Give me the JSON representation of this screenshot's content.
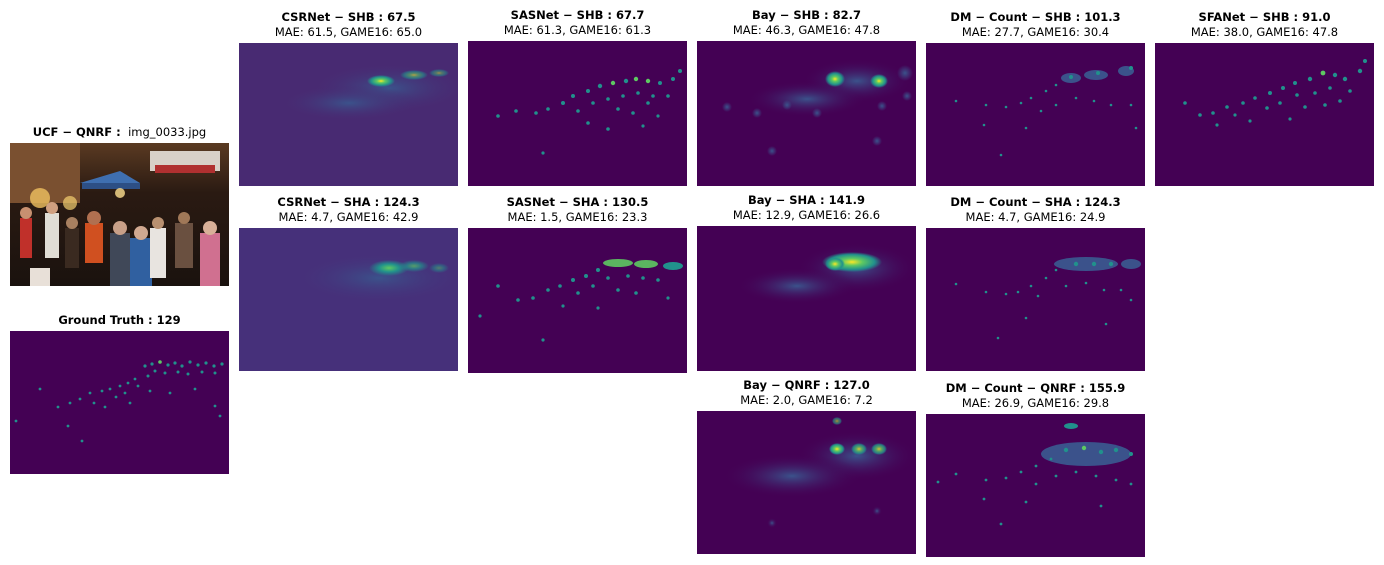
{
  "input": {
    "dataset_label": "UCF − QNRF :",
    "filename": "img_0033.jpg",
    "image_name": "crowd-photo"
  },
  "ground_truth": {
    "label": "Ground Truth : 129"
  },
  "panels": {
    "csrnet_shb": {
      "title": "CSRNet − SHB : 67.5",
      "metrics": "MAE: 61.5, GAME16: 65.0"
    },
    "csrnet_sha": {
      "title": "CSRNet − SHA : 124.3",
      "metrics": "MAE: 4.7, GAME16: 42.9"
    },
    "sasnet_shb": {
      "title": "SASNet − SHB : 67.7",
      "metrics": "MAE: 61.3, GAME16: 61.3"
    },
    "sasnet_sha": {
      "title": "SASNet − SHA : 130.5",
      "metrics": "MAE: 1.5, GAME16: 23.3"
    },
    "bay_shb": {
      "title": "Bay − SHB : 82.7",
      "metrics": "MAE: 46.3, GAME16: 47.8"
    },
    "bay_sha": {
      "title": "Bay − SHA : 141.9",
      "metrics": "MAE: 12.9, GAME16: 26.6"
    },
    "bay_qnrf": {
      "title": "Bay − QNRF : 127.0",
      "metrics": "MAE: 2.0, GAME16: 7.2"
    },
    "dm_shb": {
      "title": "DM − Count − SHB : 101.3",
      "metrics": "MAE: 27.7, GAME16: 30.4"
    },
    "dm_sha": {
      "title": "DM − Count − SHA : 124.3",
      "metrics": "MAE: 4.7, GAME16: 24.9"
    },
    "dm_qnrf": {
      "title": "DM − Count − QNRF : 155.9",
      "metrics": "MAE: 26.9, GAME16: 29.8"
    },
    "sfanet_shb": {
      "title": "SFANet − SHB : 91.0",
      "metrics": "MAE: 38.0, GAME16: 47.8"
    }
  },
  "colors": {
    "map_bg": "#440154",
    "density_low": "#3b528b",
    "density_mid": "#21918c",
    "density_high": "#5ec962",
    "density_peak": "#fde725"
  }
}
